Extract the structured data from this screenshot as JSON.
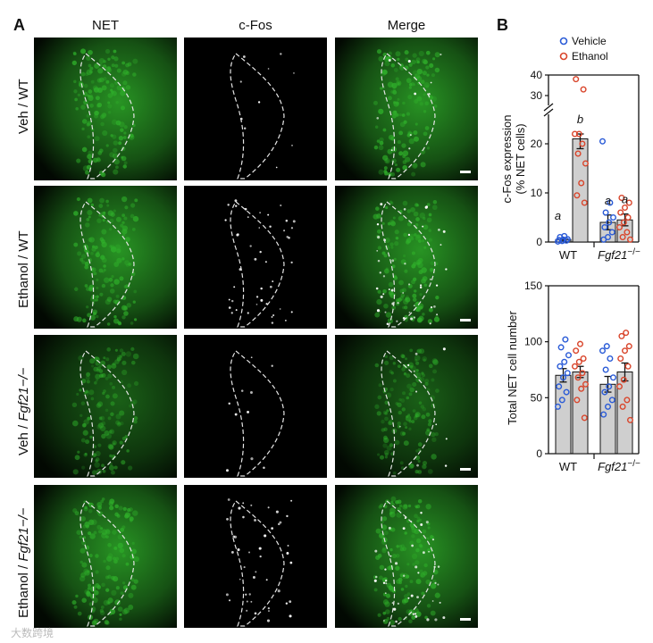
{
  "panel_a": {
    "letter": "A",
    "columns": [
      "NET",
      "c-Fos",
      "Merge"
    ],
    "rows": [
      {
        "label_prefix": "Veh / ",
        "label_genotype": "WT"
      },
      {
        "label_prefix": "Ethanol / ",
        "label_genotype": "WT"
      },
      {
        "label_prefix": "Veh / ",
        "label_genotype": "Fgf21−/−"
      },
      {
        "label_prefix": "Ethanol / ",
        "label_genotype": "Fgf21−/−"
      }
    ],
    "colors": {
      "net_green": "#2fae2a",
      "cfos_white": "#ffffff",
      "outline": "#e6e6e6"
    }
  },
  "panel_b": {
    "letter": "B",
    "legend": [
      {
        "name": "Vehicle",
        "color": "#2a5bd7"
      },
      {
        "name": "Ethanol",
        "color": "#d9452b"
      }
    ]
  },
  "chart_data": [
    {
      "type": "bar",
      "ylabel": "c-Fos expression",
      "ylabel2": "(% NET cells)",
      "ylim": [
        0,
        40
      ],
      "axis_break": [
        22,
        30
      ],
      "yticks": [
        "0",
        "10",
        "20",
        "30",
        "40"
      ],
      "categories": [
        "WT",
        "Fgf21−/−"
      ],
      "series": [
        {
          "name": "Vehicle",
          "values": [
            0.5,
            4.0
          ],
          "errors": [
            0.3,
            1.5
          ],
          "letters": [
            "a",
            "a"
          ],
          "points": [
            [
              0.1,
              0.2,
              0.3,
              0.4,
              0.5,
              0.6,
              1.0,
              1.2
            ],
            [
              0.5,
              1.0,
              2.0,
              3.0,
              4.0,
              5.0,
              6.0,
              8.0,
              20.5
            ]
          ]
        },
        {
          "name": "Ethanol",
          "values": [
            21.0,
            4.5
          ],
          "errors": [
            2.0,
            1.2
          ],
          "letters": [
            "b",
            "a"
          ],
          "points": [
            [
              8.0,
              9.5,
              12.0,
              16.0,
              18.0,
              20.0,
              22.0,
              24.0,
              33.0,
              38.0
            ],
            [
              0.5,
              1.0,
              2.0,
              3.0,
              4.0,
              5.0,
              6.0,
              7.0,
              8.0,
              9.0
            ]
          ]
        }
      ]
    },
    {
      "type": "bar",
      "ylabel": "Total NET cell number",
      "ylim": [
        0,
        150
      ],
      "yticks": [
        "0",
        "50",
        "100",
        "150"
      ],
      "categories": [
        "WT",
        "Fgf21−/−"
      ],
      "series": [
        {
          "name": "Vehicle",
          "values": [
            70,
            62
          ],
          "errors": [
            6,
            7
          ],
          "points": [
            [
              42,
              48,
              55,
              60,
              68,
              72,
              78,
              82,
              88,
              95,
              102
            ],
            [
              35,
              42,
              48,
              55,
              60,
              68,
              75,
              85,
              92,
              96
            ]
          ]
        },
        {
          "name": "Ethanol",
          "values": [
            73,
            73
          ],
          "errors": [
            5,
            8
          ],
          "points": [
            [
              32,
              48,
              58,
              62,
              68,
              72,
              78,
              82,
              85,
              92,
              98
            ],
            [
              30,
              42,
              48,
              60,
              66,
              78,
              85,
              92,
              96,
              105,
              108
            ]
          ]
        }
      ]
    }
  ],
  "watermark": "大数跨境"
}
